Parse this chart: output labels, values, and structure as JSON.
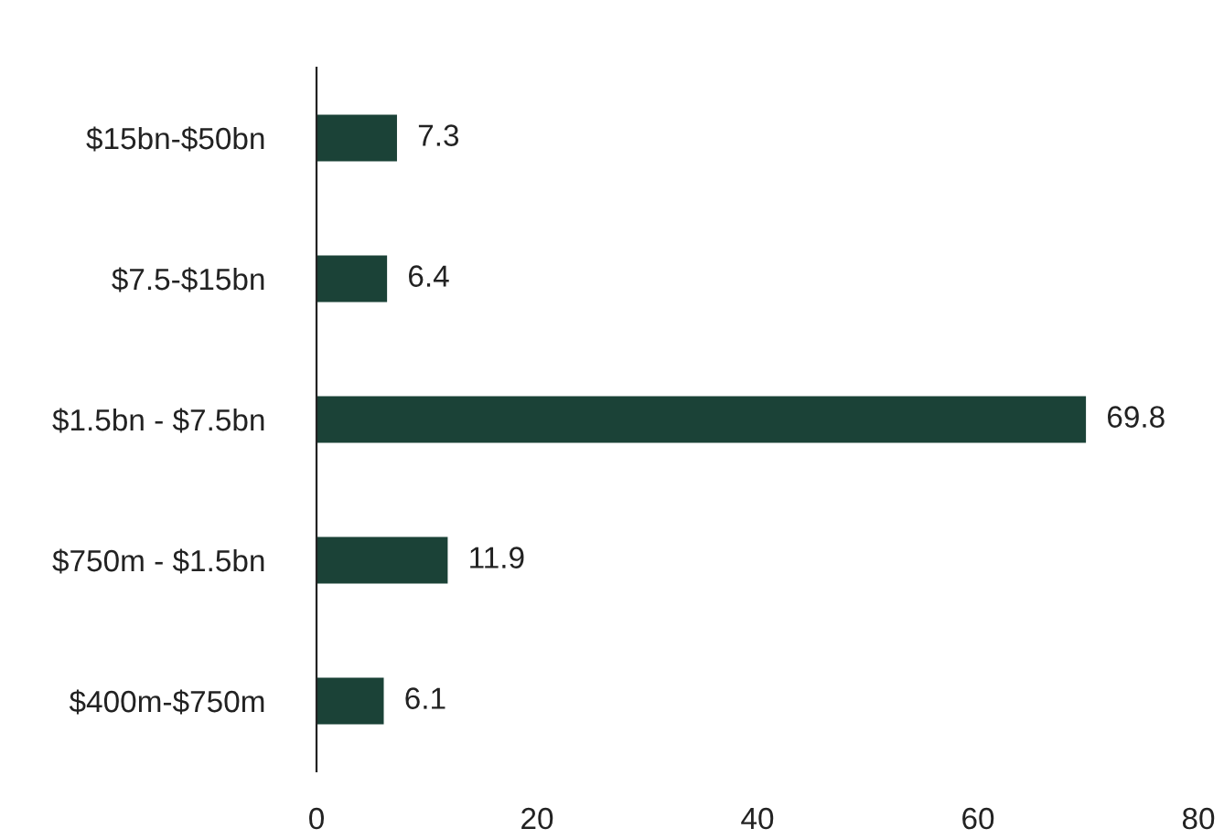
{
  "chart_data": {
    "type": "bar",
    "orientation": "horizontal",
    "categories": [
      "$15bn-$50bn",
      "$7.5-$15bn",
      "$1.5bn - $7.5bn",
      "$750m - $1.5bn",
      "$400m-$750m"
    ],
    "values": [
      7.3,
      6.4,
      69.8,
      11.9,
      6.1
    ],
    "color": "#1b4237",
    "xlim": [
      0,
      80
    ],
    "xticks": [
      0,
      20,
      40,
      60,
      80
    ],
    "data_labels": true,
    "grid": false,
    "legend": false
  }
}
